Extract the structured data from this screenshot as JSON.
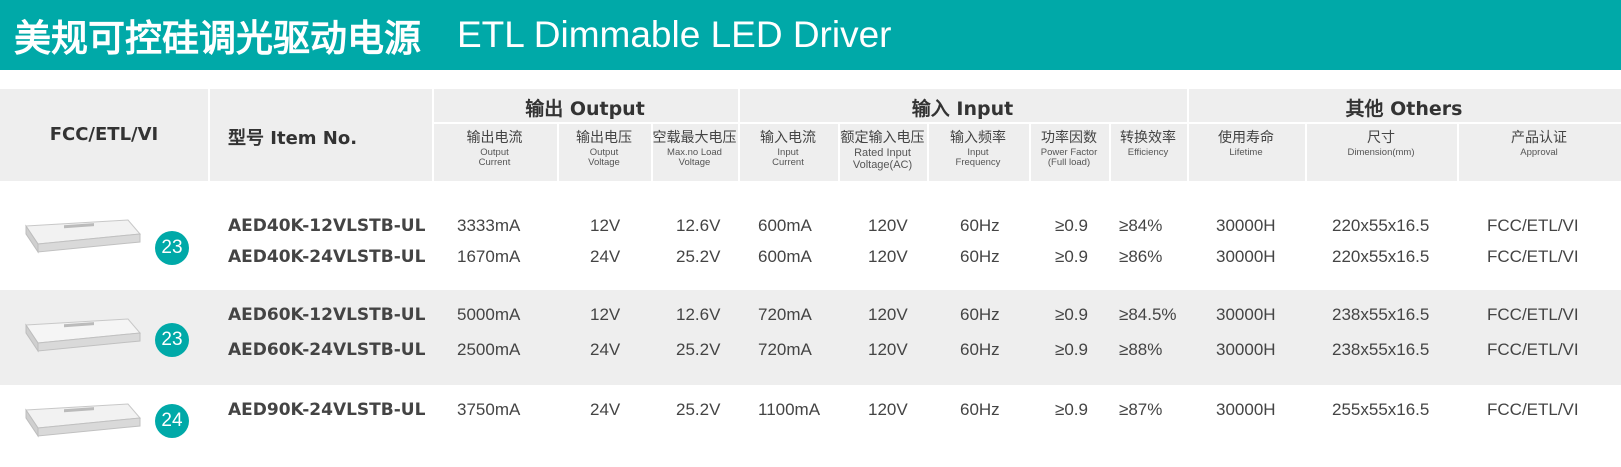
{
  "title": {
    "cn": "美规可控硅调光驱动电源",
    "en": "ETL Dimmable LED Driver"
  },
  "header": {
    "cert": "FCC/ETL/VI",
    "item_no": "型号 Item No.",
    "groups": {
      "output": "输出 Output",
      "input": "输入 Input",
      "others": "其他 Others"
    },
    "columns": [
      {
        "cn": "输出电流",
        "en1": "Output",
        "en2": "Current"
      },
      {
        "cn": "输出电压",
        "en1": "Output",
        "en2": "Voltage"
      },
      {
        "cn": "空载最大电压",
        "en1": "Max.no Load",
        "en2": "Voltage"
      },
      {
        "cn": "输入电流",
        "en1": "Input",
        "en2": "Current"
      },
      {
        "cn": "额定输入电压",
        "en1": "Rated Input",
        "en2": "Voltage(AC)"
      },
      {
        "cn": "输入频率",
        "en1": "Input",
        "en2": "Frequency"
      },
      {
        "cn": "功率因数",
        "en1": "Power Factor",
        "en2": "(Full load)"
      },
      {
        "cn": "转换效率",
        "en1": "Efficiency",
        "en2": ""
      },
      {
        "cn": "使用寿命",
        "en1": "Lifetime",
        "en2": ""
      },
      {
        "cn": "尺寸",
        "en1": "Dimension(mm)",
        "en2": ""
      },
      {
        "cn": "产品认证",
        "en1": "Approval",
        "en2": ""
      }
    ]
  },
  "groups": [
    {
      "page": "23",
      "rows": [
        {
          "model": "AED40K-12VLSTB-UL",
          "out_current": "3333mA",
          "out_voltage": "12V",
          "max_voltage": "12.6V",
          "in_current": "600mA",
          "in_voltage": "120V",
          "freq": "60Hz",
          "pf": "≥0.9",
          "eff": "≥84%",
          "life": "30000H",
          "dim": "220x55x16.5",
          "approval": "FCC/ETL/VI"
        },
        {
          "model": "AED40K-24VLSTB-UL",
          "out_current": "1670mA",
          "out_voltage": "24V",
          "max_voltage": "25.2V",
          "in_current": "600mA",
          "in_voltage": "120V",
          "freq": "60Hz",
          "pf": "≥0.9",
          "eff": "≥86%",
          "life": "30000H",
          "dim": "220x55x16.5",
          "approval": "FCC/ETL/VI"
        }
      ]
    },
    {
      "page": "23",
      "rows": [
        {
          "model": "AED60K-12VLSTB-UL",
          "out_current": "5000mA",
          "out_voltage": "12V",
          "max_voltage": "12.6V",
          "in_current": "720mA",
          "in_voltage": "120V",
          "freq": "60Hz",
          "pf": "≥0.9",
          "eff": "≥84.5%",
          "life": "30000H",
          "dim": "238x55x16.5",
          "approval": "FCC/ETL/VI"
        },
        {
          "model": "AED60K-24VLSTB-UL",
          "out_current": "2500mA",
          "out_voltage": "24V",
          "max_voltage": "25.2V",
          "in_current": "720mA",
          "in_voltage": "120V",
          "freq": "60Hz",
          "pf": "≥0.9",
          "eff": "≥88%",
          "life": "30000H",
          "dim": "238x55x16.5",
          "approval": "FCC/ETL/VI"
        }
      ]
    },
    {
      "page": "24",
      "rows": [
        {
          "model": "AED90K-24VLSTB-UL",
          "out_current": "3750mA",
          "out_voltage": "24V",
          "max_voltage": "25.2V",
          "in_current": "1100mA",
          "in_voltage": "120V",
          "freq": "60Hz",
          "pf": "≥0.9",
          "eff": "≥87%",
          "life": "30000H",
          "dim": "255x55x16.5",
          "approval": "FCC/ETL/VI"
        }
      ]
    }
  ],
  "colors": {
    "accent": "#00a9a8",
    "band": "#eeeeee"
  }
}
